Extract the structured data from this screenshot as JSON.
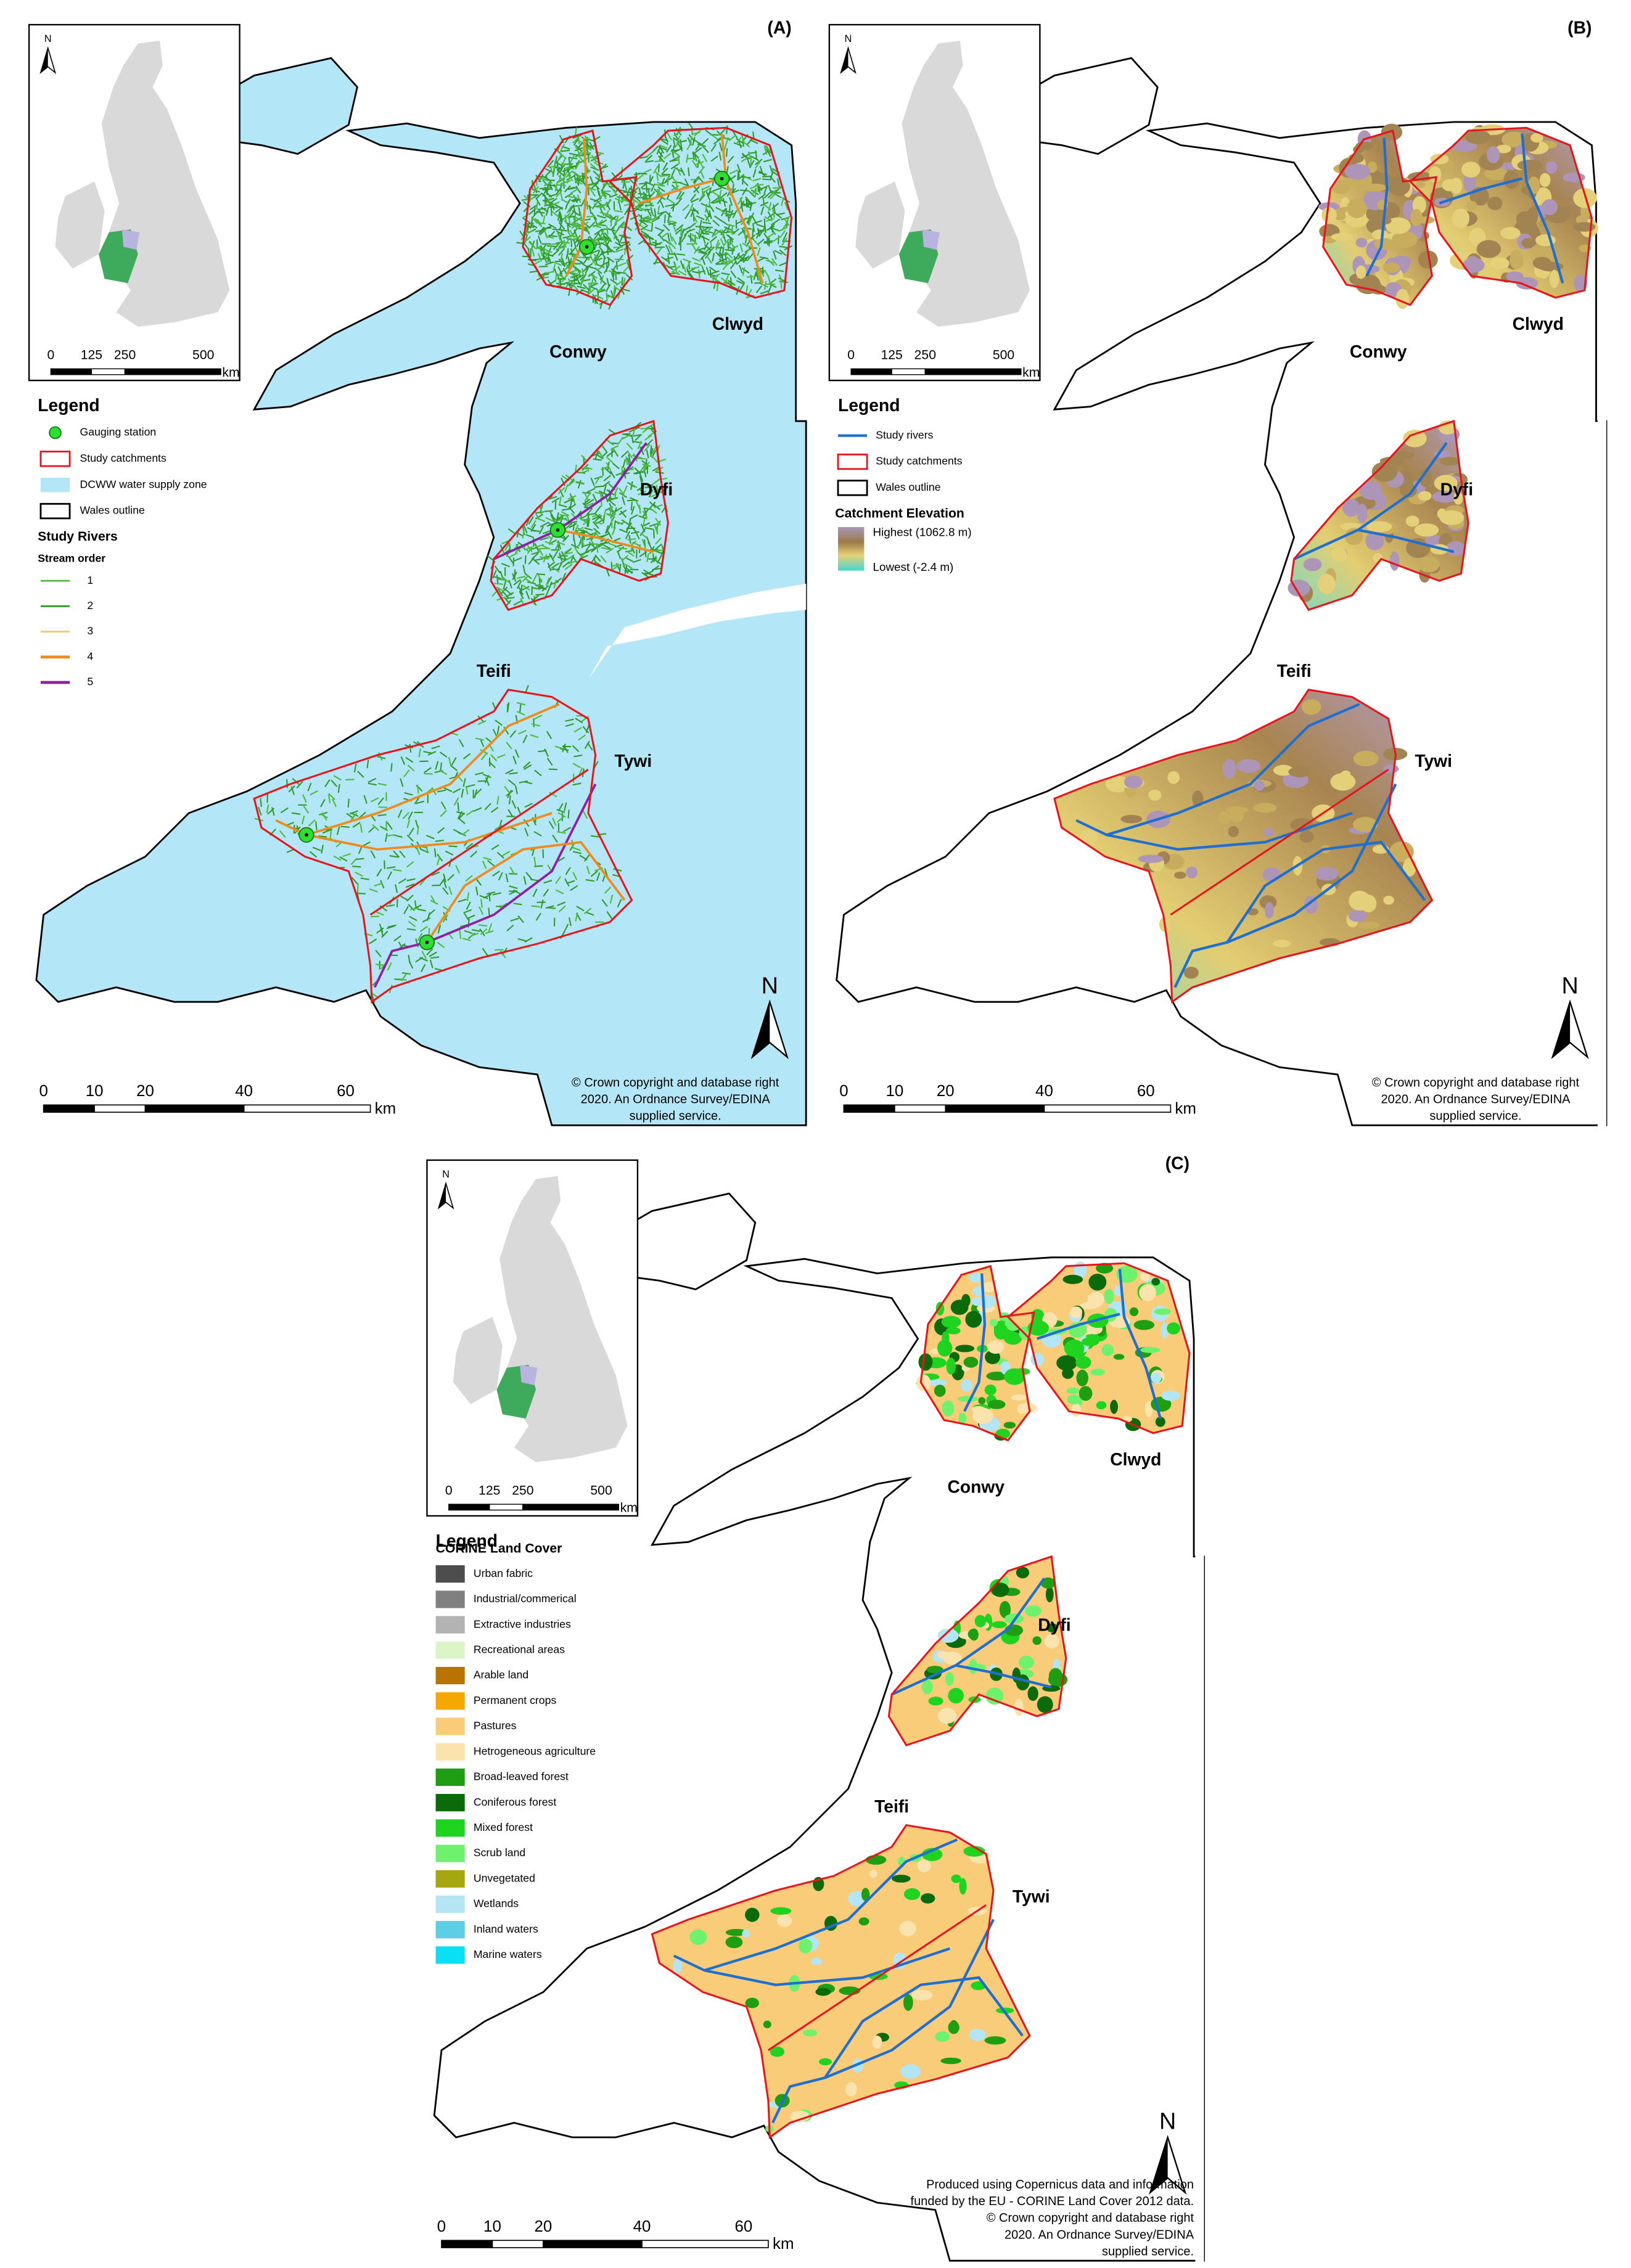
{
  "panels": [
    {
      "label": "(A)",
      "inset": {
        "north": "N",
        "scale_labels": [
          "0",
          "125",
          "250",
          "500"
        ],
        "scale_unit": "km"
      },
      "legend": {
        "title": "Legend",
        "items": [
          "Gauging station",
          "Study catchments",
          "DCWW water supply zone",
          "Wales outline"
        ],
        "group_title": "Study Rivers",
        "group_subtitle": "Stream order",
        "group_items": [
          {
            "label": "1",
            "color": "#4cbb3c"
          },
          {
            "label": "2",
            "color": "#2f9a2a"
          },
          {
            "label": "3",
            "color": "#f6c86a"
          },
          {
            "label": "4",
            "color": "#ef8a1c"
          },
          {
            "label": "5",
            "color": "#8e1fa6"
          }
        ]
      },
      "catchments": [
        "Conwy",
        "Clwyd",
        "Dyfi",
        "Teifi",
        "Tywi"
      ],
      "north": "N",
      "scale_labels": [
        "0",
        "10",
        "20",
        "40",
        "60"
      ],
      "scale_unit": "km",
      "credit": [
        "© Crown copyright and database right",
        "2020. An Ordnance Survey/EDINA",
        "supplied service."
      ]
    },
    {
      "label": "(B)",
      "inset": {
        "north": "N",
        "scale_labels": [
          "0",
          "125",
          "250",
          "500"
        ],
        "scale_unit": "km"
      },
      "legend": {
        "title": "Legend",
        "items": [
          "Study rivers",
          "Study catchments",
          "Wales outline"
        ],
        "group_title": "Catchment Elevation",
        "group_items": [
          "Highest (1062.8 m)",
          "Lowest (-2.4 m)"
        ]
      },
      "catchments": [
        "Conwy",
        "Clwyd",
        "Dyfi",
        "Teifi",
        "Tywi"
      ],
      "north": "N",
      "scale_labels": [
        "0",
        "10",
        "20",
        "40",
        "60"
      ],
      "scale_unit": "km",
      "credit": [
        "© Crown copyright and database right",
        "2020. An Ordnance Survey/EDINA",
        "supplied service."
      ]
    },
    {
      "label": "(C)",
      "inset": {
        "north": "N",
        "scale_labels": [
          "0",
          "125",
          "250",
          "500"
        ],
        "scale_unit": "km"
      },
      "legend": {
        "title": "Legend",
        "group_title": "CORINE Land Cover",
        "group_items": [
          {
            "label": "Urban fabric",
            "color": "#4d4d4d"
          },
          {
            "label": "Industrial/commerical",
            "color": "#808080"
          },
          {
            "label": "Extractive industries",
            "color": "#b3b3b3"
          },
          {
            "label": "Recreational areas",
            "color": "#dcf5c6"
          },
          {
            "label": "Arable land",
            "color": "#b87300"
          },
          {
            "label": "Permanent crops",
            "color": "#f5a800"
          },
          {
            "label": "Pastures",
            "color": "#f8cc79"
          },
          {
            "label": "Hetrogeneous agriculture",
            "color": "#fbe3ad"
          },
          {
            "label": "Broad-leaved forest",
            "color": "#1f9e14"
          },
          {
            "label": "Coniferous forest",
            "color": "#0b6b0b"
          },
          {
            "label": "Mixed forest",
            "color": "#1fd41f"
          },
          {
            "label": "Scrub land",
            "color": "#6ef26e"
          },
          {
            "label": "Unvegetated",
            "color": "#a6a60f"
          },
          {
            "label": "Wetlands",
            "color": "#b3e5f5"
          },
          {
            "label": "Inland waters",
            "color": "#5ccfe6"
          },
          {
            "label": "Marine waters",
            "color": "#0ae0f5"
          }
        ]
      },
      "catchments": [
        "Conwy",
        "Clwyd",
        "Dyfi",
        "Teifi",
        "Tywi"
      ],
      "north": "N",
      "scale_labels": [
        "0",
        "10",
        "20",
        "40",
        "60"
      ],
      "scale_unit": "km",
      "credit": [
        "Produced using Copernicus data and information",
        "funded by the EU - CORINE Land Cover 2012 data.",
        "© Crown copyright and database right",
        "2020. An Ordnance Survey/EDINA",
        "supplied service."
      ]
    }
  ]
}
